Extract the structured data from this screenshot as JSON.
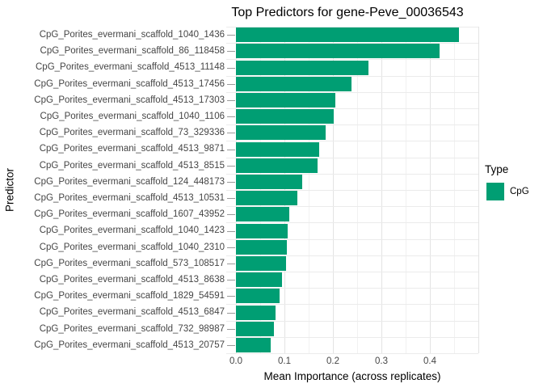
{
  "chart_data": {
    "type": "bar",
    "orientation": "horizontal",
    "title": "Top Predictors for gene-Peve_00036543",
    "xlabel": "Mean Importance (across replicates)",
    "ylabel": "Predictor",
    "xlim": [
      0,
      0.5
    ],
    "xticks": [
      0.0,
      0.1,
      0.2,
      0.3,
      0.4
    ],
    "xtick_labels": [
      "0.0",
      "0.1",
      "0.2",
      "0.3",
      "0.4"
    ],
    "grid": true,
    "gridline_interval_minor": 0.05,
    "legend": {
      "position": "right",
      "title": "Type",
      "entries": [
        {
          "label": "CpG",
          "color": "#009E73"
        }
      ]
    },
    "categories": [
      "CpG_Porites_evermani_scaffold_1040_1436",
      "CpG_Porites_evermani_scaffold_86_118458",
      "CpG_Porites_evermani_scaffold_4513_11148",
      "CpG_Porites_evermani_scaffold_4513_17456",
      "CpG_Porites_evermani_scaffold_4513_17303",
      "CpG_Porites_evermani_scaffold_1040_1106",
      "CpG_Porites_evermani_scaffold_73_329336",
      "CpG_Porites_evermani_scaffold_4513_9871",
      "CpG_Porites_evermani_scaffold_4513_8515",
      "CpG_Porites_evermani_scaffold_124_448173",
      "CpG_Porites_evermani_scaffold_4513_10531",
      "CpG_Porites_evermani_scaffold_1607_43952",
      "CpG_Porites_evermani_scaffold_1040_1423",
      "CpG_Porites_evermani_scaffold_1040_2310",
      "CpG_Porites_evermani_scaffold_573_108517",
      "CpG_Porites_evermani_scaffold_4513_8638",
      "CpG_Porites_evermani_scaffold_1829_54591",
      "CpG_Porites_evermani_scaffold_4513_6847",
      "CpG_Porites_evermani_scaffold_732_98987",
      "CpG_Porites_evermani_scaffold_4513_20757"
    ],
    "values": [
      0.46,
      0.42,
      0.273,
      0.239,
      0.205,
      0.202,
      0.185,
      0.172,
      0.168,
      0.136,
      0.127,
      0.11,
      0.107,
      0.105,
      0.103,
      0.095,
      0.09,
      0.081,
      0.078,
      0.072
    ],
    "series_name": "CpG"
  },
  "colors": {
    "bar_fill": "#009E73",
    "major_grid": "#e3e3e3",
    "minor_grid": "#f1f1f1",
    "row_grid": "#ebebeb",
    "tick_mark": "#9a9a9a",
    "axis_text": "#454545",
    "background": "#ffffff"
  }
}
